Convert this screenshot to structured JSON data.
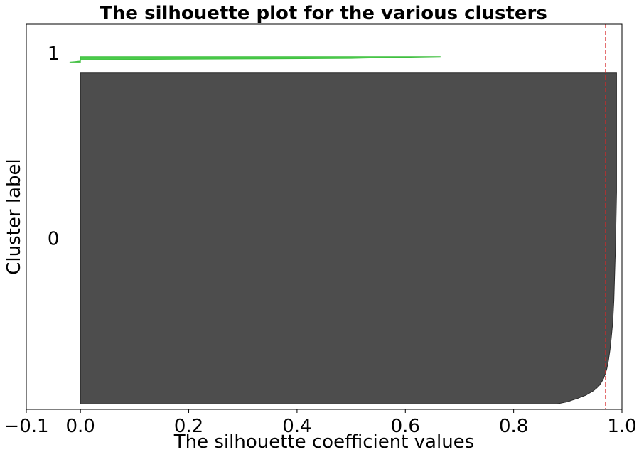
{
  "chart_data": {
    "type": "area",
    "title": "The silhouette plot for the various clusters",
    "xlabel": "The silhouette coefficient values",
    "ylabel": "Cluster label",
    "xlim": [
      -0.1,
      1.0
    ],
    "ylim": [
      0,
      710
    ],
    "xticks": [
      -0.1,
      0.0,
      0.2,
      0.4,
      0.6,
      0.8,
      1.0
    ],
    "xtick_labels": [
      "−0.1",
      "0.0",
      "0.2",
      "0.4",
      "0.6",
      "0.8",
      "1.0"
    ],
    "yticks": [],
    "grid": false,
    "average_silhouette_score": 0.97,
    "average_line_color": "#d62728",
    "clusters": [
      {
        "label": "0",
        "color": "#4d4d4d",
        "edge_color": "#2a2a2a",
        "y_range": [
          10,
          620
        ],
        "label_y": 315,
        "profile": [
          [
            620,
            0.99
          ],
          [
            500,
            0.99
          ],
          [
            400,
            0.99
          ],
          [
            300,
            0.988
          ],
          [
            200,
            0.985
          ],
          [
            160,
            0.983
          ],
          [
            130,
            0.98
          ],
          [
            110,
            0.978
          ],
          [
            90,
            0.975
          ],
          [
            75,
            0.972
          ],
          [
            65,
            0.969
          ],
          [
            57,
            0.966
          ],
          [
            50,
            0.962
          ],
          [
            44,
            0.958
          ],
          [
            39,
            0.953
          ],
          [
            34,
            0.947
          ],
          [
            30,
            0.94
          ],
          [
            26,
            0.933
          ],
          [
            23,
            0.925
          ],
          [
            20,
            0.918
          ],
          [
            17,
            0.908
          ],
          [
            14,
            0.9
          ],
          [
            12,
            0.89
          ],
          [
            10,
            0.88
          ]
        ]
      },
      {
        "label": "1",
        "color": "#4ccc4c",
        "edge_color": "#3fbf3f",
        "y_range": [
          640,
          650
        ],
        "label_y": 656,
        "profile": [
          [
            650,
            0.665
          ],
          [
            649,
            0.6
          ],
          [
            648,
            0.55
          ],
          [
            647,
            0.5
          ],
          [
            646,
            0.3
          ],
          [
            645,
            0.1
          ],
          [
            644,
            0.0
          ],
          [
            642,
            0.0
          ],
          [
            641,
            -0.01
          ],
          [
            640,
            -0.02
          ]
        ]
      }
    ]
  }
}
